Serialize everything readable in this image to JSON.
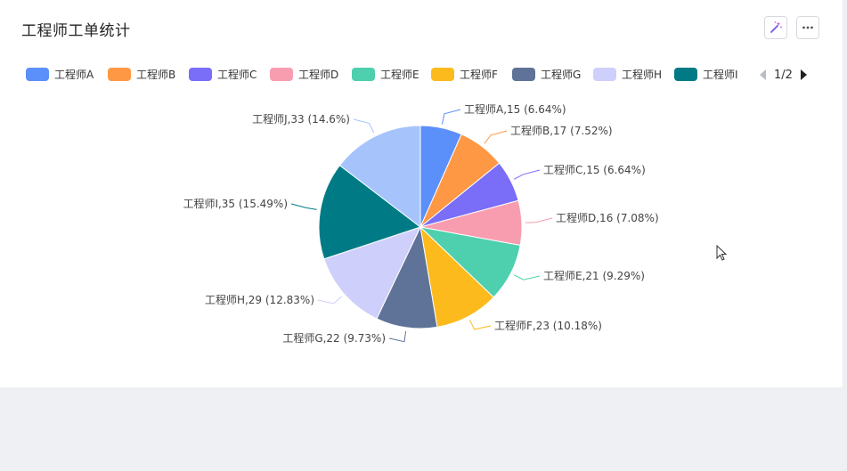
{
  "title": "工程师工单统计",
  "pager": {
    "text": "1/2"
  },
  "colors": [
    "#5b8ff9",
    "#ff9845",
    "#7a6df8",
    "#f89db0",
    "#4ecfad",
    "#fdba1c",
    "#5f7298",
    "#cfcffb",
    "#007b86",
    "#a6c4fb"
  ],
  "chart_data": {
    "type": "pie",
    "title": "工程师工单统计",
    "legend_position": "top",
    "categories": [
      "工程师A",
      "工程师B",
      "工程师C",
      "工程师D",
      "工程师E",
      "工程师F",
      "工程师G",
      "工程师H",
      "工程师I",
      "工程师J"
    ],
    "values": [
      15,
      17,
      15,
      16,
      21,
      23,
      22,
      29,
      35,
      33
    ],
    "labels": [
      "工程师A,15 (6.64%)",
      "工程师B,17 (7.52%)",
      "工程师C,15 (6.64%)",
      "工程师D,16 (7.08%)",
      "工程师E,21 (9.29%)",
      "工程师F,23 (10.18%)",
      "工程师G,22 (9.73%)",
      "工程师H,29 (12.83%)",
      "工程师I,35 (15.49%)",
      "工程师J,33 (14.6%)"
    ]
  },
  "legend": {
    "visible_items": [
      "工程师A",
      "工程师B",
      "工程师C",
      "工程师D",
      "工程师E",
      "工程师F",
      "工程师G",
      "工程师H",
      "工程师I"
    ]
  }
}
